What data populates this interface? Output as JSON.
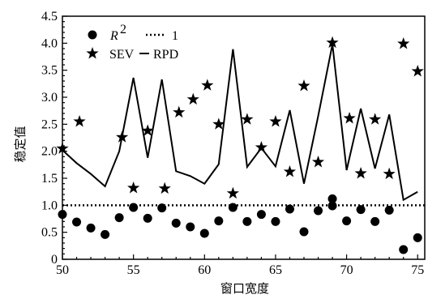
{
  "chart_data": {
    "type": "scatter",
    "xlabel": "窗口宽度",
    "ylabel": "稳定值",
    "xlim": [
      50,
      75.5
    ],
    "ylim": [
      0,
      4.5
    ],
    "x_ticks": [
      "50",
      "55",
      "60",
      "65",
      "70",
      "75"
    ],
    "y_ticks": [
      "0",
      "0.5",
      "1.0",
      "1.5",
      "2.0",
      "2.5",
      "3.0",
      "3.5",
      "4.0",
      "4.5"
    ],
    "grid": false,
    "legend_position": "top-left",
    "legend": {
      "r2_label": "R",
      "r2_superscript": "2",
      "one_label": "1",
      "sev_label": "SEV",
      "rpd_label": "RPD"
    },
    "series": [
      {
        "name": "R²",
        "marker": "circle",
        "x": [
          50,
          51,
          52,
          53,
          54,
          55,
          56,
          57,
          58,
          59,
          60,
          61,
          62,
          63,
          64,
          65,
          66,
          67,
          68,
          69,
          69,
          70,
          71,
          72,
          73,
          74,
          75
        ],
        "y": [
          0.83,
          0.69,
          0.58,
          0.46,
          0.77,
          0.96,
          0.76,
          0.95,
          0.67,
          0.6,
          0.48,
          0.71,
          0.96,
          0.7,
          0.83,
          0.7,
          0.93,
          0.51,
          0.9,
          1.12,
          0.99,
          0.71,
          0.92,
          0.7,
          0.91,
          0.18,
          0.4
        ]
      },
      {
        "name": "SEV",
        "marker": "star",
        "x": [
          50,
          51.2,
          54.2,
          55,
          56,
          57.2,
          58.2,
          59.2,
          60.2,
          61,
          62,
          63,
          64,
          65,
          66,
          67,
          68,
          69,
          70.2,
          71,
          72,
          73,
          74,
          75
        ],
        "y": [
          2.05,
          2.55,
          2.26,
          1.32,
          2.38,
          1.31,
          2.72,
          2.96,
          3.22,
          2.5,
          1.22,
          2.59,
          2.07,
          2.55,
          1.62,
          3.21,
          1.8,
          4.01,
          2.61,
          1.59,
          2.59,
          1.58,
          3.99,
          3.48
        ]
      },
      {
        "name": "RPD",
        "marker": "line",
        "x": [
          50,
          51,
          52,
          53,
          54,
          55,
          56,
          57,
          58,
          59,
          60,
          61,
          62,
          63,
          64,
          65,
          66,
          67,
          68,
          69,
          70,
          71,
          72,
          73,
          74,
          75
        ],
        "y": [
          2.02,
          1.78,
          1.58,
          1.35,
          2.0,
          3.36,
          1.88,
          3.33,
          1.63,
          1.54,
          1.4,
          1.76,
          3.89,
          1.71,
          2.06,
          1.72,
          2.76,
          1.4,
          2.65,
          3.98,
          1.65,
          2.79,
          1.68,
          2.68,
          1.1,
          1.25
        ]
      },
      {
        "name": "1",
        "marker": "dotted-line",
        "x": [
          50,
          75.5
        ],
        "y": [
          1.0,
          1.0
        ]
      }
    ]
  }
}
